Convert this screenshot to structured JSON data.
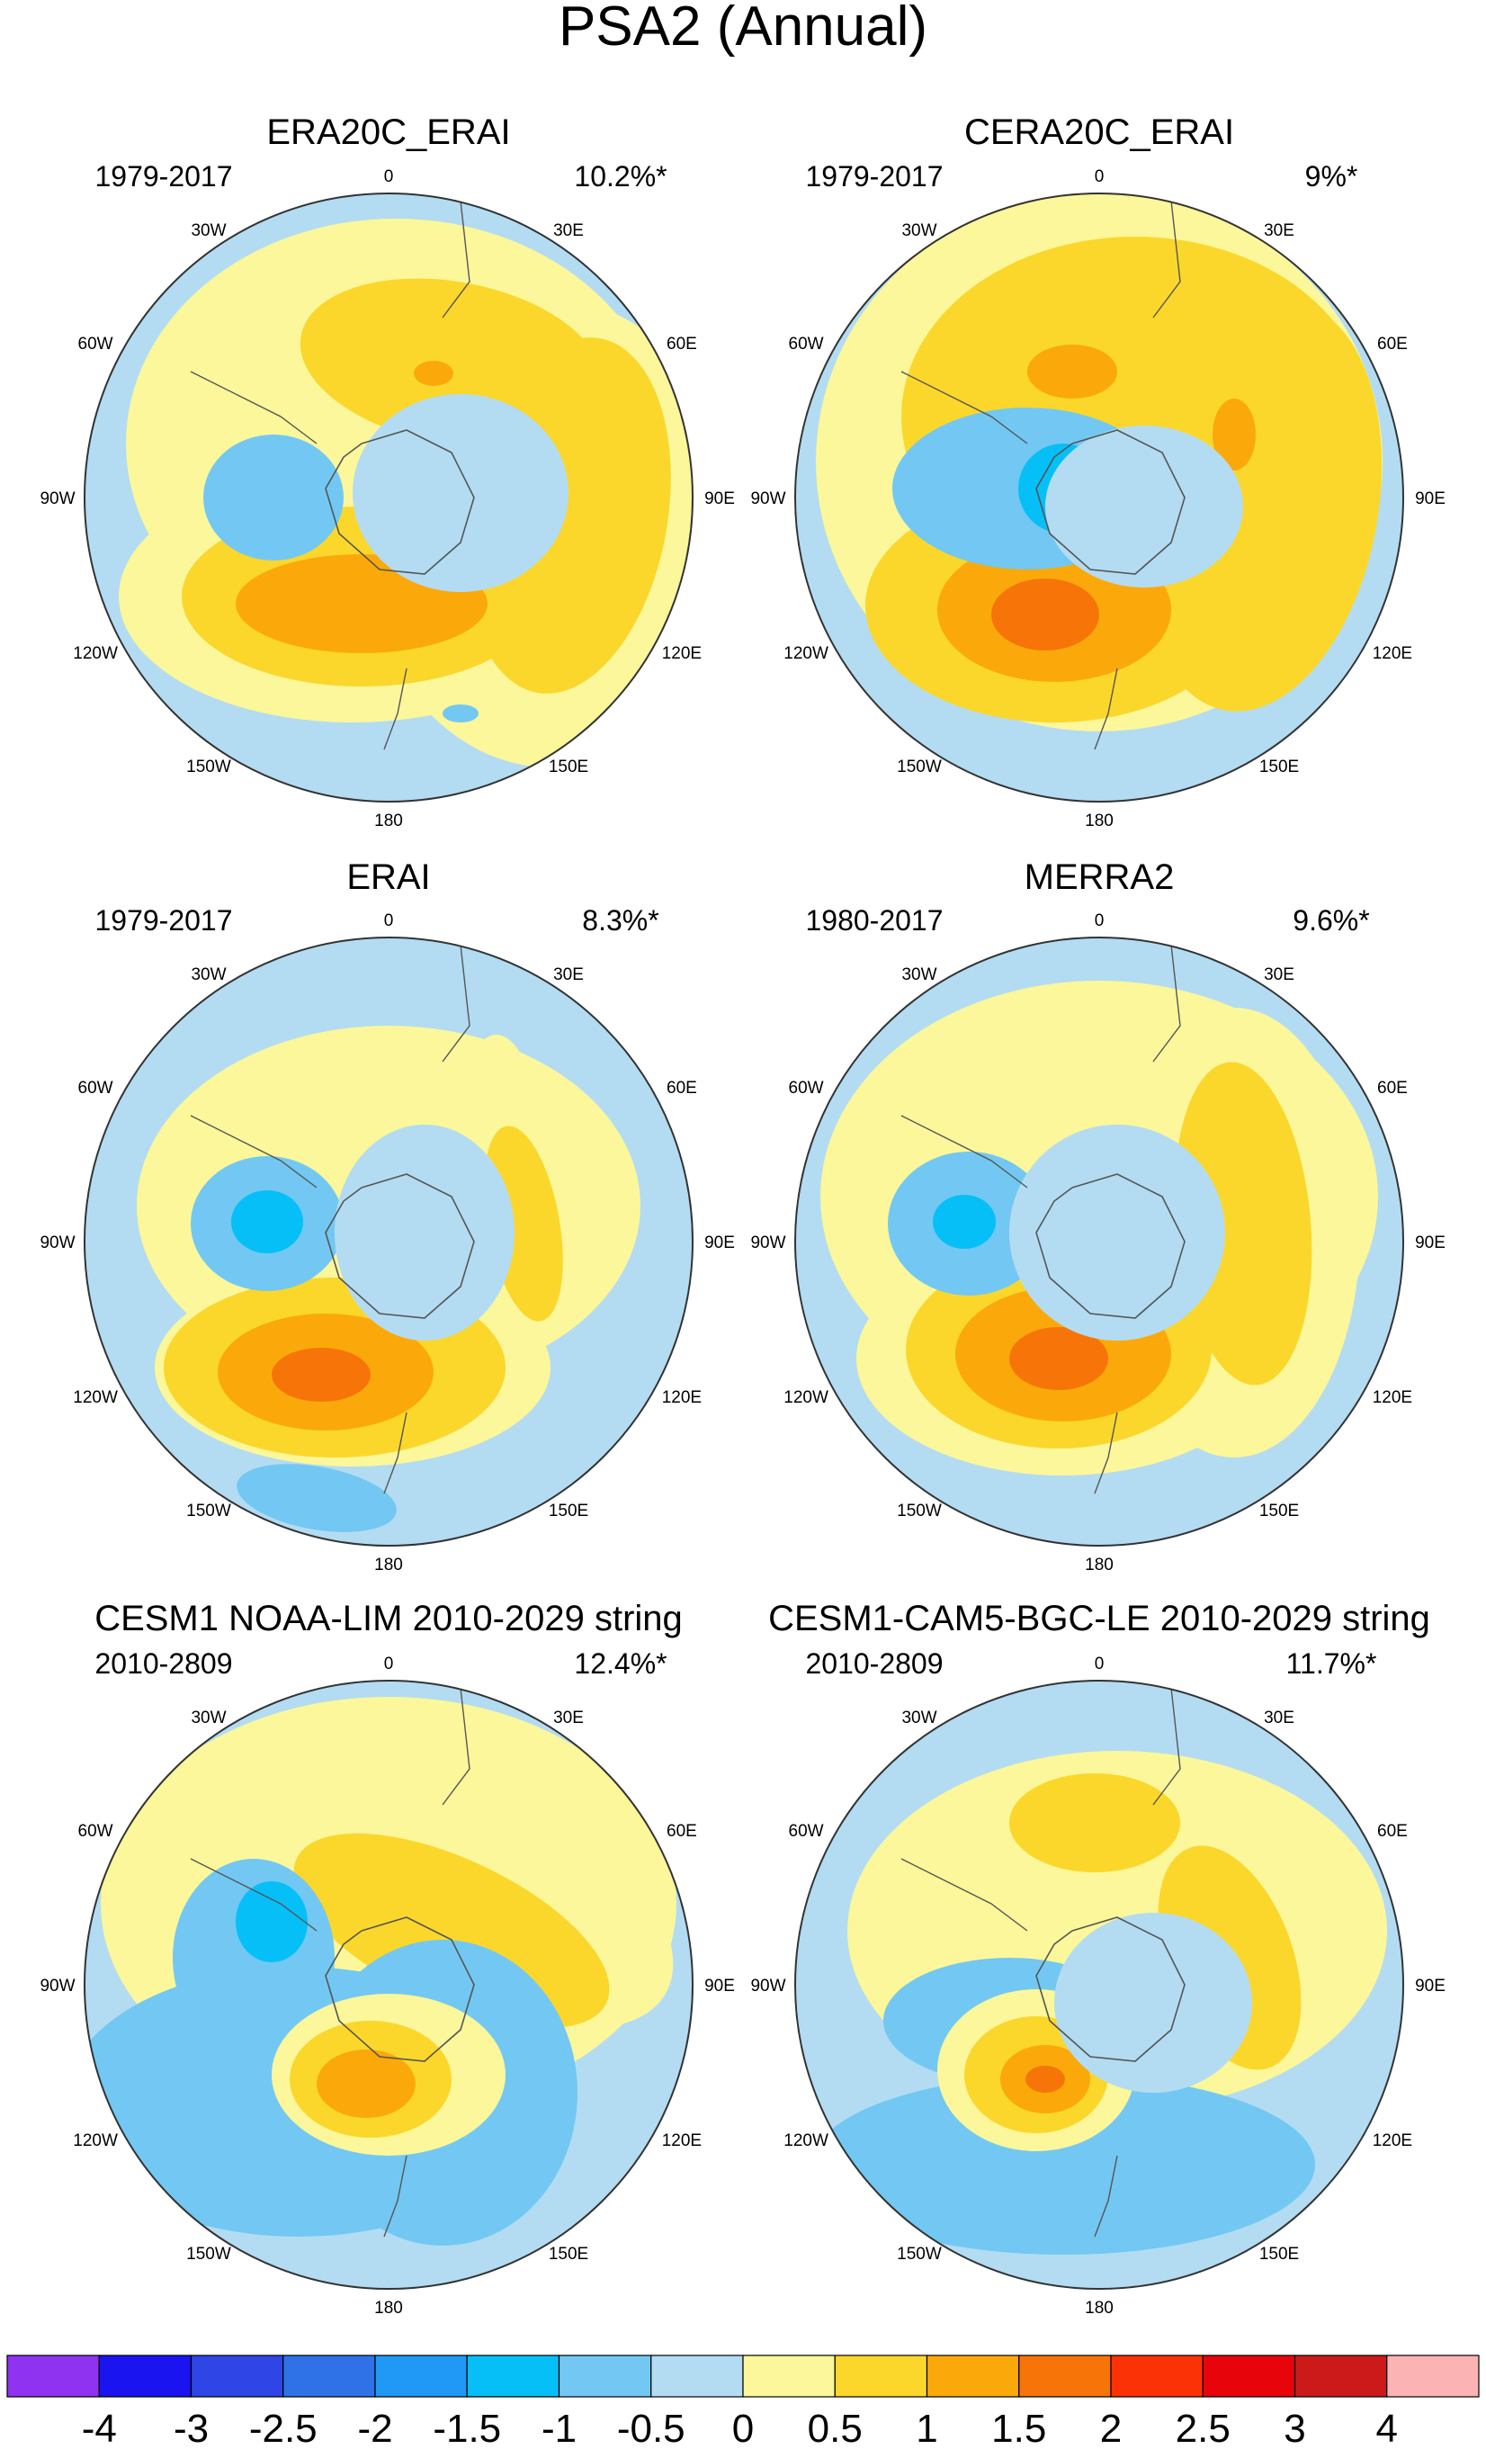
{
  "page": {
    "title": "PSA2 (Annual)"
  },
  "chart_data": {
    "type": "polar-contour-maps",
    "title": "PSA2 (Annual)",
    "colorbar": {
      "colors": [
        "#8f33f0",
        "#1a14f0",
        "#2f45e6",
        "#2f72e8",
        "#2098f5",
        "#06bff7",
        "#72c8f2",
        "#b3dcf2",
        "#fbf79a",
        "#fbd72c",
        "#fba90a",
        "#f77508",
        "#fb3205",
        "#e8040b",
        "#cc1a1a",
        "#fbb3b3"
      ],
      "labels": [
        "-4",
        "-3",
        "-2.5",
        "-2",
        "-1.5",
        "-1",
        "-0.5",
        "0",
        "0.5",
        "1",
        "1.5",
        "2",
        "2.5",
        "3",
        "4"
      ]
    },
    "panels": [
      {
        "title": "ERA20C_ERAI",
        "period": "1979-2017",
        "variance": "10.2%*"
      },
      {
        "title": "CERA20C_ERAI",
        "period": "1979-2017",
        "variance": "9%*"
      },
      {
        "title": "ERAI",
        "period": "1979-2017",
        "variance": "8.3%*"
      },
      {
        "title": "MERRA2",
        "period": "1980-2017",
        "variance": "9.6%*"
      },
      {
        "title": "CESM1 NOAA-LIM 2010-2029 string",
        "period": "2010-2809",
        "variance": "12.4%*"
      },
      {
        "title": "CESM1-CAM5-BGC-LE 2010-2029 string",
        "period": "2010-2809",
        "variance": "11.7%*"
      }
    ],
    "longitude_labels": [
      "0",
      "30E",
      "60E",
      "90E",
      "120E",
      "150E",
      "180",
      "150W",
      "120W",
      "90W",
      "60W",
      "30W"
    ]
  }
}
